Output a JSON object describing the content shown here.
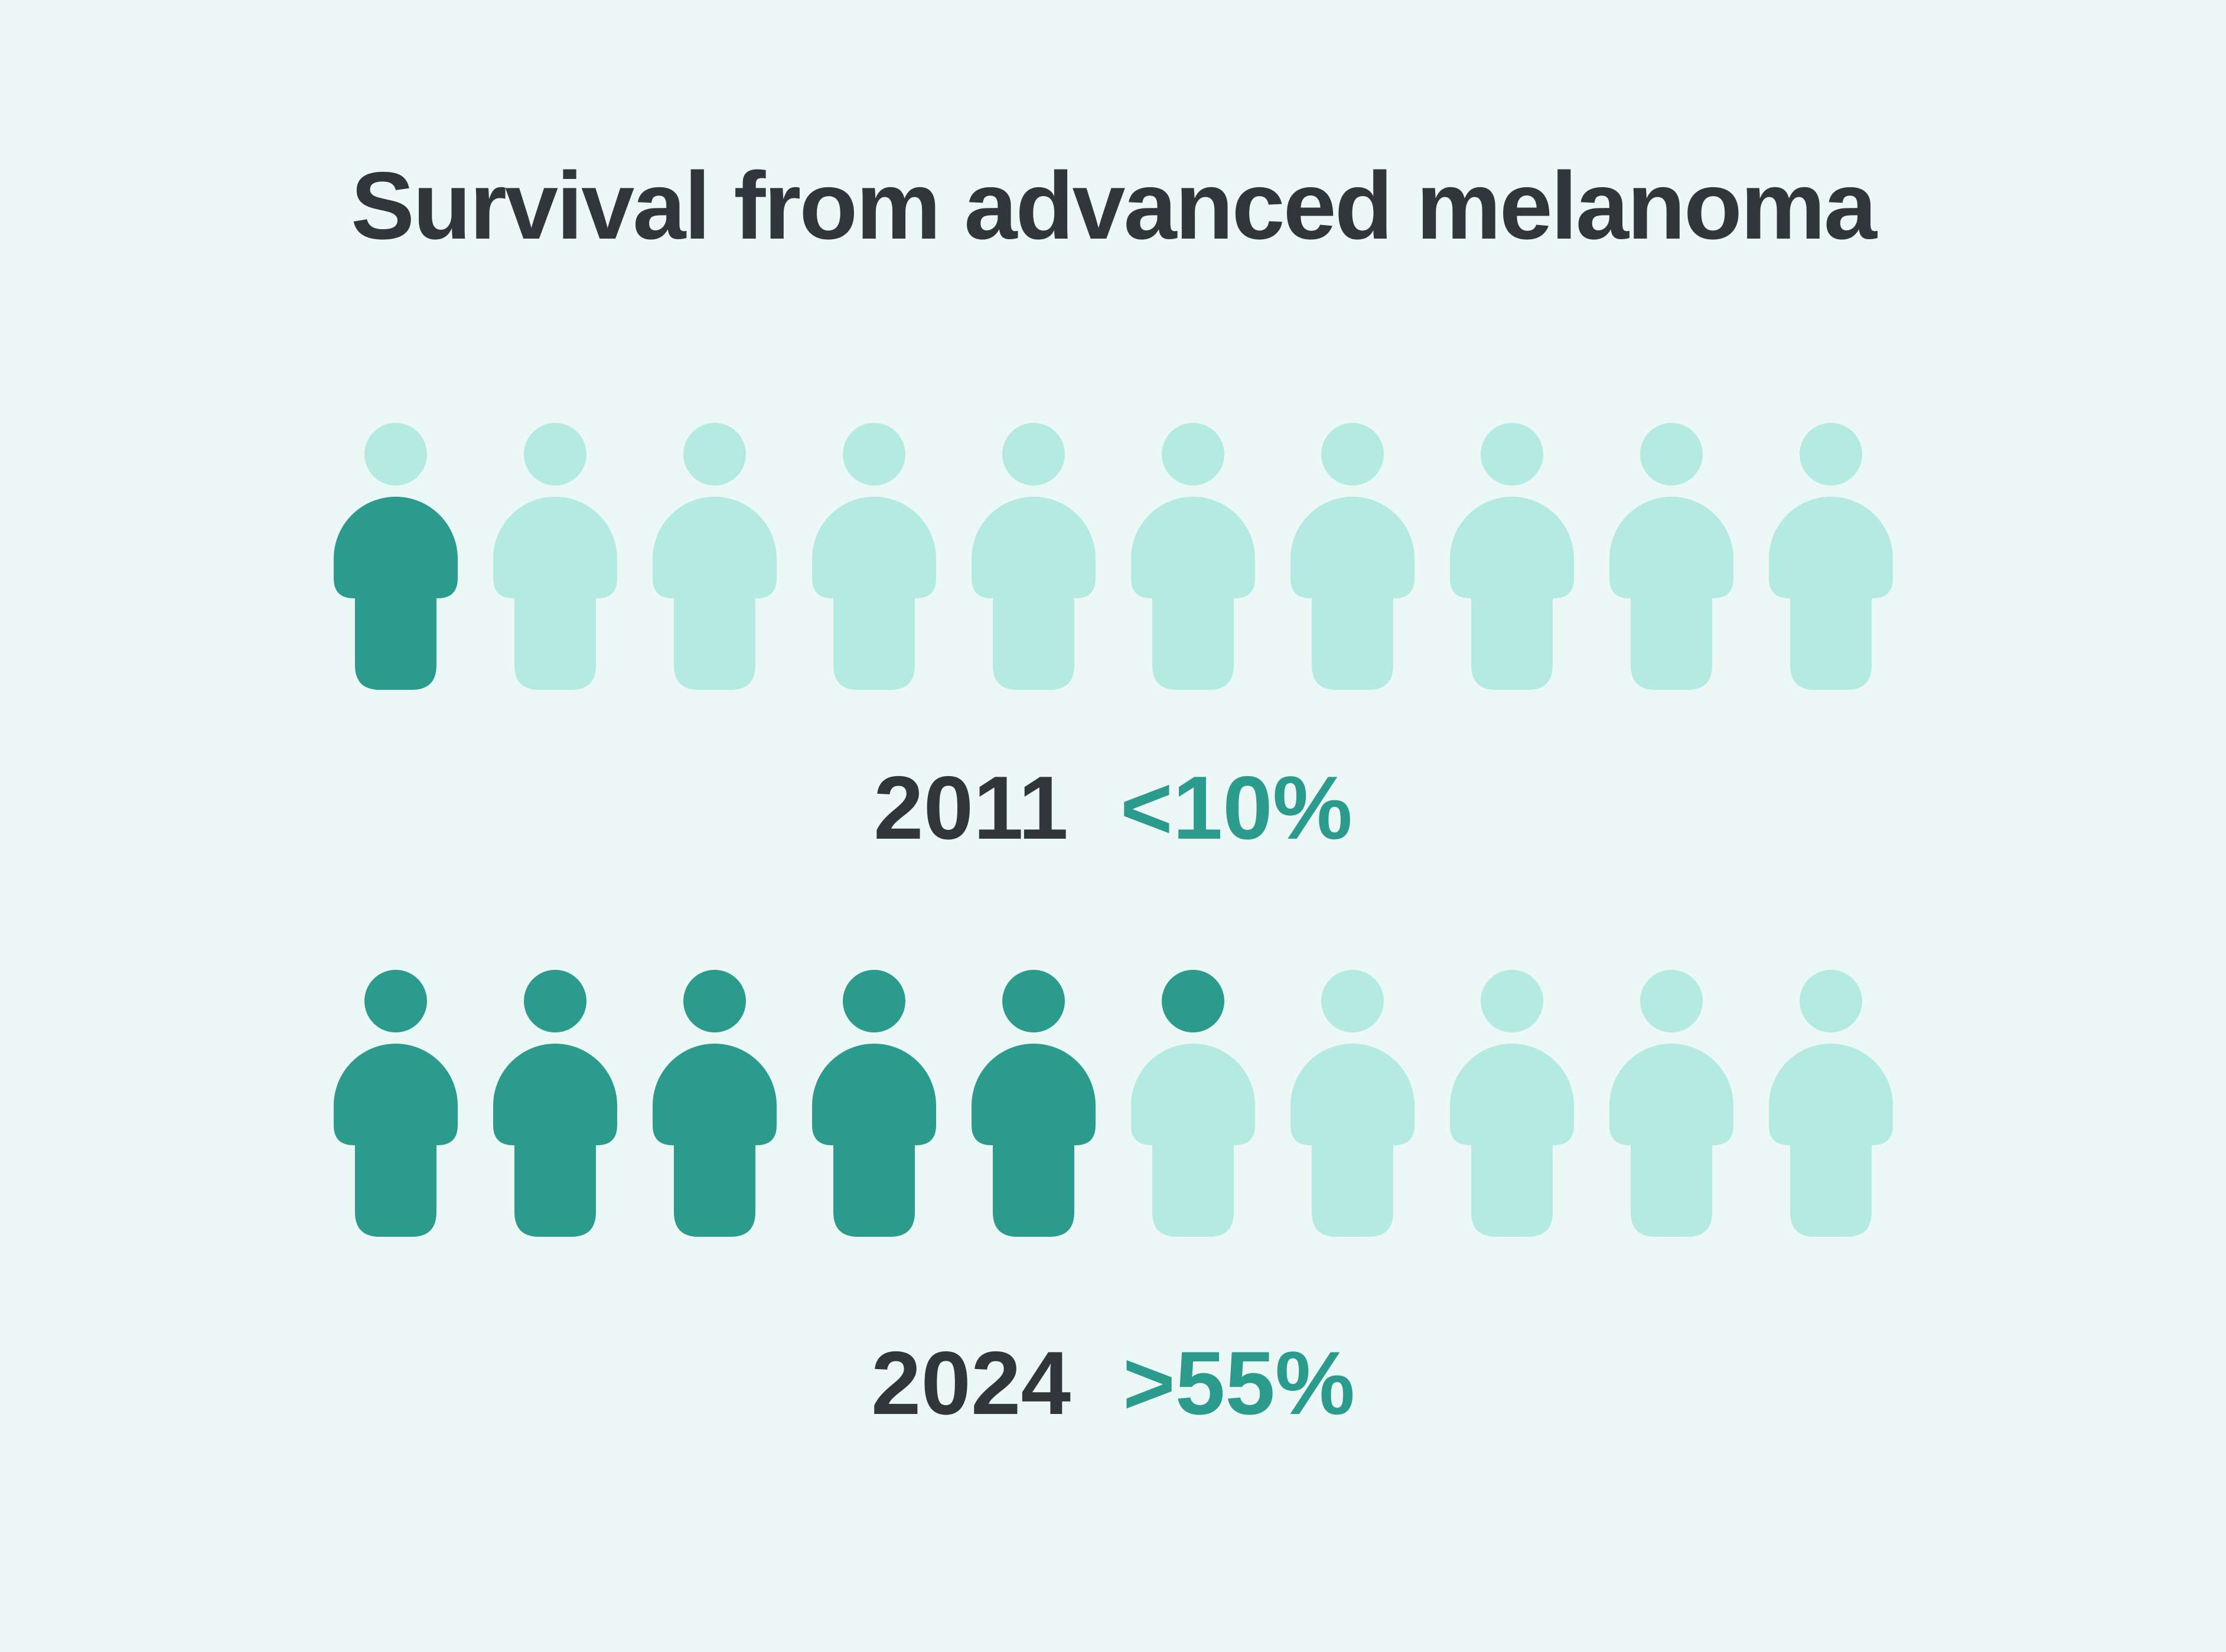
{
  "title": "Survival from advanced melanoma",
  "colors": {
    "background": "#ebf8f5",
    "survivor": "#2a9b8c",
    "non_survivor": "#b4eae1",
    "year_text": "#31363b",
    "value_text": "#2a9b8c"
  },
  "chart_data": {
    "type": "pictogram",
    "title": "Survival from advanced melanoma",
    "icon": "person",
    "icons_per_row": 10,
    "rows": [
      {
        "year": "2011",
        "value_label": "<10%",
        "icons": [
          "body-filled",
          "empty",
          "empty",
          "empty",
          "empty",
          "empty",
          "empty",
          "empty",
          "empty",
          "empty"
        ]
      },
      {
        "year": "2024",
        "value_label": ">55%",
        "icons": [
          "filled",
          "filled",
          "filled",
          "filled",
          "filled",
          "head-filled",
          "empty",
          "empty",
          "empty",
          "empty"
        ]
      }
    ]
  }
}
